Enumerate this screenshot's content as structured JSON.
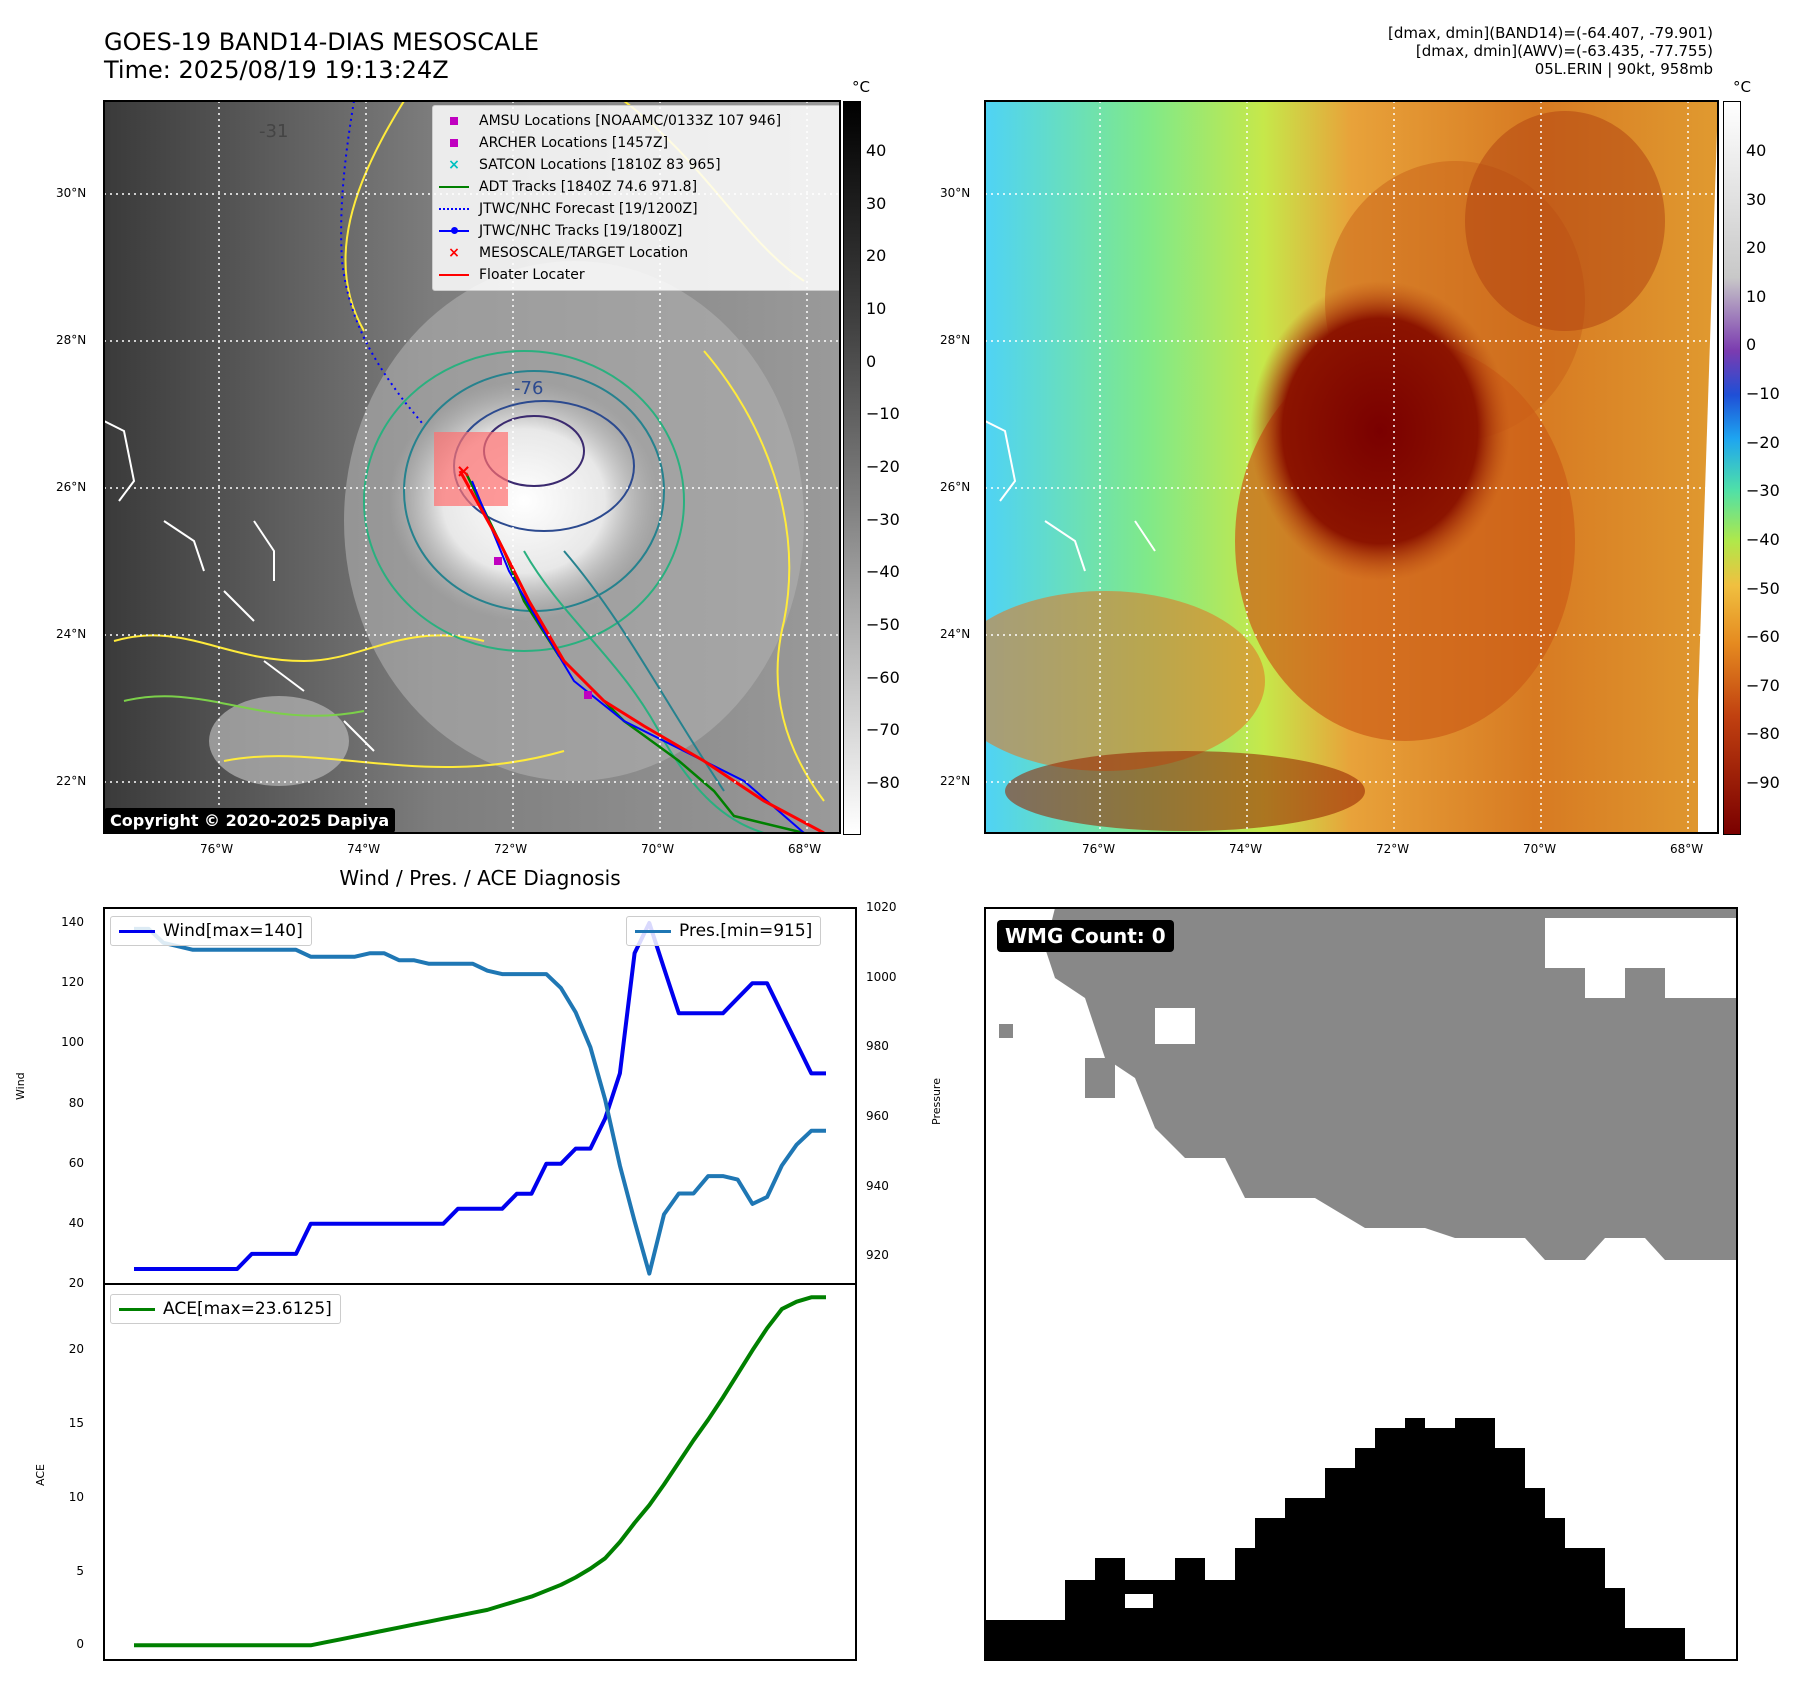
{
  "header": {
    "title_line1": "GOES-19 BAND14-DIAS MESOSCALE",
    "title_line2": "Time: 2025/08/19 19:13:24Z",
    "stats_line1": "[dmax, dmin](BAND14)=(-64.407, -79.901)",
    "stats_line2": "[dmax, dmin](AWV)=(-63.435, -77.755)",
    "stats_line3": "05L.ERIN | 90kt, 958mb"
  },
  "map_ticks": {
    "lat": [
      "30°N",
      "28°N",
      "26°N",
      "24°N",
      "22°N"
    ],
    "lon": [
      "76°W",
      "74°W",
      "72°W",
      "70°W",
      "68°W"
    ]
  },
  "left_map": {
    "legend": [
      {
        "label": "AMSU Locations [NOAAMC/0133Z 107 946]",
        "marker": "square",
        "color": "#c000c0"
      },
      {
        "label": "ARCHER Locations [1457Z]",
        "marker": "square",
        "color": "#c000c0"
      },
      {
        "label": "SATCON Locations [1810Z 83 965]",
        "marker": "x",
        "color": "#00c0c0"
      },
      {
        "label": "ADT Tracks [1840Z 74.6 971.8]",
        "marker": "line",
        "color": "#008000"
      },
      {
        "label": "JTWC/NHC Forecast [19/1200Z]",
        "marker": "dotted",
        "color": "#0000ff"
      },
      {
        "label": "JTWC/NHC Tracks [19/1800Z]",
        "marker": "line-dot",
        "color": "#0000ff"
      },
      {
        "label": "MESOSCALE/TARGET Location",
        "marker": "x",
        "color": "#ff0000"
      },
      {
        "label": "Floater Locater",
        "marker": "line",
        "color": "#ff0000"
      }
    ],
    "contour_labels": [
      "-31",
      "-76"
    ],
    "copyright": "Copyright © 2020-2025 Dapiya",
    "colorbar_unit": "°C",
    "colorbar_ticks": [
      "40",
      "30",
      "20",
      "10",
      "0",
      "−10",
      "−20",
      "−30",
      "−40",
      "−50",
      "−60",
      "−70",
      "−80"
    ]
  },
  "right_map": {
    "colorbar_unit": "°C",
    "colorbar_ticks": [
      "40",
      "30",
      "20",
      "10",
      "0",
      "−10",
      "−20",
      "−30",
      "−40",
      "−50",
      "−60",
      "−70",
      "−80",
      "−90"
    ]
  },
  "diagnosis": {
    "title": "Wind / Pres. / ACE Diagnosis",
    "wind_ylabel": "Wind",
    "pressure_ylabel": "Pressure",
    "ace_ylabel": "ACE",
    "wind_legend": "Wind[max=140]",
    "pres_legend": "Pres.[min=915]",
    "ace_legend": "ACE[max=23.6125]",
    "wind_ticks": [
      "140",
      "120",
      "100",
      "80",
      "60",
      "40",
      "20"
    ],
    "pres_ticks": [
      "1020",
      "1000",
      "980",
      "960",
      "940",
      "920"
    ],
    "ace_ticks": [
      "20",
      "15",
      "10",
      "5",
      "0"
    ]
  },
  "wmg": {
    "label": "WMG Count: 0"
  },
  "colors": {
    "wind": "#0000ee",
    "pressure": "#1f77b4",
    "ace": "#008000",
    "wmg_gray": "#888888"
  },
  "chart_data": [
    {
      "type": "line",
      "title": "Wind / Pres. / ACE Diagnosis",
      "ylabel": "Wind",
      "ylim": [
        20,
        145
      ],
      "series": [
        {
          "name": "Wind[max=140]",
          "values": [
            25,
            25,
            25,
            25,
            25,
            25,
            25,
            25,
            30,
            30,
            30,
            30,
            40,
            40,
            40,
            40,
            40,
            40,
            40,
            40,
            40,
            40,
            45,
            45,
            45,
            45,
            50,
            50,
            60,
            60,
            65,
            65,
            75,
            90,
            130,
            140,
            125,
            110,
            110,
            110,
            110,
            115,
            120,
            120,
            110,
            100,
            90,
            90
          ]
        }
      ]
    },
    {
      "type": "line",
      "ylabel": "Pressure",
      "ylim": [
        912,
        1020
      ],
      "series": [
        {
          "name": "Pres.[min=915]",
          "values": [
            1014,
            1014,
            1010,
            1009,
            1008,
            1008,
            1008,
            1008,
            1008,
            1008,
            1008,
            1008,
            1006,
            1006,
            1006,
            1006,
            1007,
            1007,
            1005,
            1005,
            1004,
            1004,
            1004,
            1004,
            1002,
            1001,
            1001,
            1001,
            1001,
            997,
            990,
            980,
            965,
            946,
            930,
            915,
            932,
            938,
            938,
            943,
            943,
            942,
            935,
            937,
            946,
            952,
            956,
            956
          ]
        }
      ]
    },
    {
      "type": "line",
      "ylabel": "ACE",
      "ylim": [
        -1,
        24.5
      ],
      "series": [
        {
          "name": "ACE[max=23.6125]",
          "values": [
            0,
            0,
            0,
            0,
            0,
            0,
            0,
            0,
            0,
            0,
            0,
            0,
            0,
            0.2,
            0.4,
            0.6,
            0.8,
            1.0,
            1.2,
            1.4,
            1.6,
            1.8,
            2.0,
            2.2,
            2.4,
            2.7,
            3.0,
            3.3,
            3.7,
            4.1,
            4.6,
            5.2,
            5.9,
            7.0,
            8.3,
            9.5,
            10.9,
            12.4,
            13.9,
            15.3,
            16.8,
            18.4,
            20.0,
            21.5,
            22.8,
            23.3,
            23.6,
            23.6
          ]
        }
      ]
    }
  ]
}
